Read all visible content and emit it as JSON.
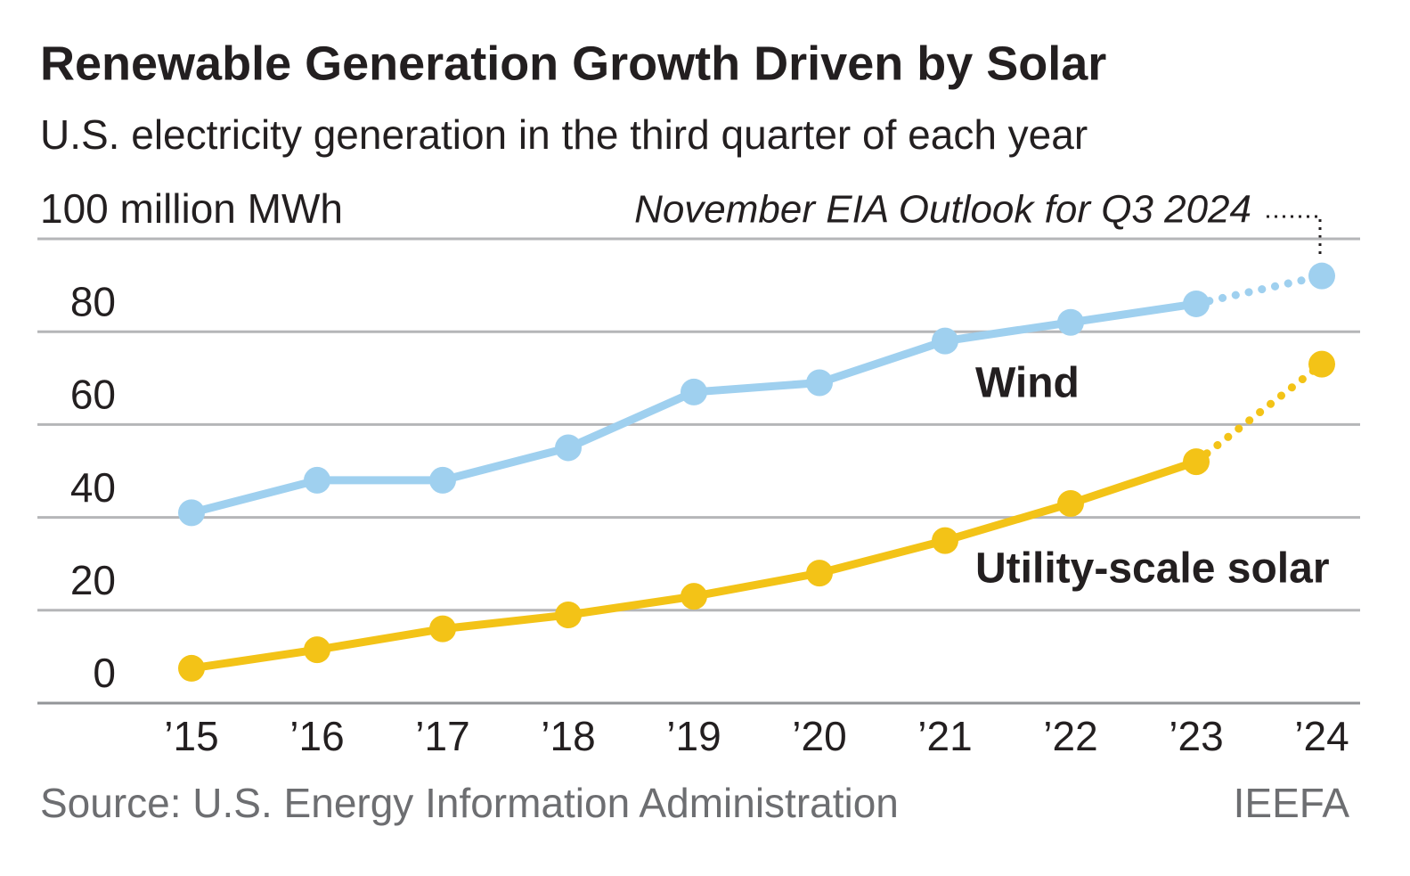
{
  "chart_data": {
    "type": "line",
    "title": "Renewable Generation Growth Driven by Solar",
    "subtitle": "U.S. electricity generation in the third quarter of each year",
    "annotation": "November EIA Outlook for Q3 2024",
    "source": "Source: U.S. Energy Information Administration",
    "credit": "IEEFA",
    "categories": [
      "’15",
      "’16",
      "’17",
      "’18",
      "’19",
      "’20",
      "’21",
      "’22",
      "’23",
      "’24"
    ],
    "series": [
      {
        "name": "Wind",
        "color": "#9fd0ef",
        "values": [
          41,
          48,
          48,
          55,
          67,
          69,
          78,
          82,
          86,
          92
        ]
      },
      {
        "name": "Utility-scale solar",
        "color": "#f3c317",
        "values": [
          7.5,
          11.5,
          16,
          19,
          23,
          28,
          35,
          43,
          52,
          73
        ]
      }
    ],
    "ylim": [
      0,
      100
    ],
    "yticks": [
      0,
      20,
      40,
      60,
      80,
      {
        "value": 100,
        "label": "100 million MWh"
      }
    ],
    "grid": true,
    "dotted_last_segment": true
  }
}
